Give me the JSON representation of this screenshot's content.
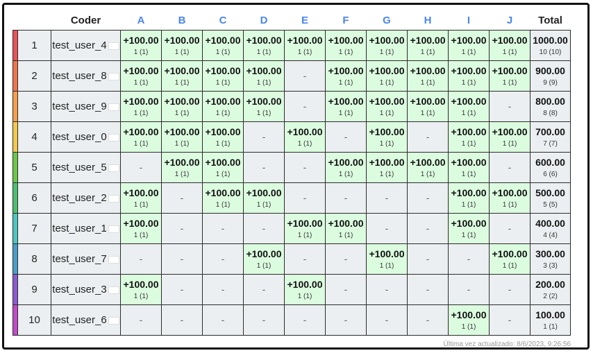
{
  "header": {
    "coder_label": "Coder",
    "total_label": "Total",
    "problems": [
      "A",
      "B",
      "C",
      "D",
      "E",
      "F",
      "G",
      "H",
      "I",
      "J"
    ]
  },
  "rows": [
    {
      "rank": "1",
      "user": "test_user_4",
      "color": "#e8545a",
      "cells": [
        [
          "+100.00",
          "1 (1)"
        ],
        [
          "+100.00",
          "1 (1)"
        ],
        [
          "+100.00",
          "1 (1)"
        ],
        [
          "+100.00",
          "1 (1)"
        ],
        [
          "+100.00",
          "1 (1)"
        ],
        [
          "+100.00",
          "1 (1)"
        ],
        [
          "+100.00",
          "1 (1)"
        ],
        [
          "+100.00",
          "1 (1)"
        ],
        [
          "+100.00",
          "1 (1)"
        ],
        [
          "+100.00",
          "1 (1)"
        ]
      ],
      "total": "1000.00",
      "total_sub": "10 (10)"
    },
    {
      "rank": "2",
      "user": "test_user_8",
      "color": "#f0744c",
      "cells": [
        [
          "+100.00",
          "1 (1)"
        ],
        [
          "+100.00",
          "1 (1)"
        ],
        [
          "+100.00",
          "1 (1)"
        ],
        [
          "+100.00",
          "1 (1)"
        ],
        null,
        [
          "+100.00",
          "1 (1)"
        ],
        [
          "+100.00",
          "1 (1)"
        ],
        [
          "+100.00",
          "1 (1)"
        ],
        [
          "+100.00",
          "1 (1)"
        ],
        [
          "+100.00",
          "1 (1)"
        ]
      ],
      "total": "900.00",
      "total_sub": "9 (9)"
    },
    {
      "rank": "3",
      "user": "test_user_9",
      "color": "#f5a04a",
      "cells": [
        [
          "+100.00",
          "1 (1)"
        ],
        [
          "+100.00",
          "1 (1)"
        ],
        [
          "+100.00",
          "1 (1)"
        ],
        [
          "+100.00",
          "1 (1)"
        ],
        null,
        [
          "+100.00",
          "1 (1)"
        ],
        [
          "+100.00",
          "1 (1)"
        ],
        [
          "+100.00",
          "1 (1)"
        ],
        [
          "+100.00",
          "1 (1)"
        ],
        null
      ],
      "total": "800.00",
      "total_sub": "8 (8)"
    },
    {
      "rank": "4",
      "user": "test_user_0",
      "color": "#f3c94e",
      "cells": [
        [
          "+100.00",
          "1 (1)"
        ],
        [
          "+100.00",
          "1 (1)"
        ],
        [
          "+100.00",
          "1 (1)"
        ],
        null,
        [
          "+100.00",
          "1 (1)"
        ],
        null,
        [
          "+100.00",
          "1 (1)"
        ],
        null,
        [
          "+100.00",
          "1 (1)"
        ],
        [
          "+100.00",
          "1 (1)"
        ]
      ],
      "total": "700.00",
      "total_sub": "7 (7)"
    },
    {
      "rank": "5",
      "user": "test_user_5",
      "color": "#6cc84a",
      "cells": [
        null,
        [
          "+100.00",
          "1 (1)"
        ],
        [
          "+100.00",
          "1 (1)"
        ],
        null,
        null,
        [
          "+100.00",
          "1 (1)"
        ],
        [
          "+100.00",
          "1 (1)"
        ],
        [
          "+100.00",
          "1 (1)"
        ],
        [
          "+100.00",
          "1 (1)"
        ],
        null
      ],
      "total": "600.00",
      "total_sub": "6 (6)"
    },
    {
      "rank": "6",
      "user": "test_user_2",
      "color": "#4cc070",
      "cells": [
        [
          "+100.00",
          "1 (1)"
        ],
        null,
        [
          "+100.00",
          "1 (1)"
        ],
        [
          "+100.00",
          "1 (1)"
        ],
        null,
        null,
        null,
        null,
        [
          "+100.00",
          "1 (1)"
        ],
        [
          "+100.00",
          "1 (1)"
        ]
      ],
      "total": "500.00",
      "total_sub": "5 (5)"
    },
    {
      "rank": "7",
      "user": "test_user_1",
      "color": "#4cc8c0",
      "cells": [
        [
          "+100.00",
          "1 (1)"
        ],
        null,
        null,
        null,
        [
          "+100.00",
          "1 (1)"
        ],
        [
          "+100.00",
          "1 (1)"
        ],
        null,
        null,
        [
          "+100.00",
          "1 (1)"
        ],
        null
      ],
      "total": "400.00",
      "total_sub": "4 (4)"
    },
    {
      "rank": "8",
      "user": "test_user_7",
      "color": "#4a9ec8",
      "cells": [
        null,
        null,
        null,
        [
          "+100.00",
          "1 (1)"
        ],
        null,
        null,
        [
          "+100.00",
          "1 (1)"
        ],
        null,
        null,
        [
          "+100.00",
          "1 (1)"
        ]
      ],
      "total": "300.00",
      "total_sub": "3 (3)"
    },
    {
      "rank": "9",
      "user": "test_user_3",
      "color": "#8a5cd0",
      "cells": [
        [
          "+100.00",
          "1 (1)"
        ],
        null,
        null,
        null,
        [
          "+100.00",
          "1 (1)"
        ],
        null,
        null,
        null,
        null,
        null
      ],
      "total": "200.00",
      "total_sub": "2 (2)"
    },
    {
      "rank": "10",
      "user": "test_user_6",
      "color": "#c04cc8",
      "cells": [
        null,
        null,
        null,
        null,
        null,
        null,
        null,
        null,
        [
          "+100.00",
          "1 (1)"
        ],
        null
      ],
      "total": "100.00",
      "total_sub": "1 (1)"
    }
  ],
  "empty_mark": "-",
  "footer": {
    "updated": "Última vez actualizado: 8/6/2023, 9:26:56"
  }
}
